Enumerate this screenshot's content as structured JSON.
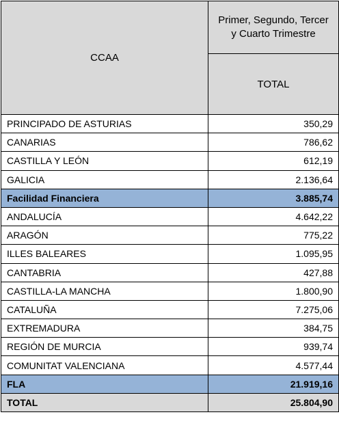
{
  "table": {
    "header": {
      "label_column": "CCAA",
      "period": "Primer, Segundo, Tercer y Cuarto Trimestre",
      "value_column": "TOTAL"
    },
    "rows": [
      [
        "PRINCIPADO DE ASTURIAS",
        "350,29"
      ],
      [
        "CANARIAS",
        "786,62"
      ],
      [
        "CASTILLA Y LEÓN",
        "612,19"
      ],
      [
        "GALICIA",
        "2.136,64"
      ],
      [
        "Facilidad Financiera",
        "3.885,74"
      ],
      [
        "ANDALUCÍA",
        "4.642,22"
      ],
      [
        "ARAGÓN",
        "775,22"
      ],
      [
        "ILLES BALEARES",
        "1.095,95"
      ],
      [
        "CANTABRIA",
        "427,88"
      ],
      [
        "CASTILLA-LA MANCHA",
        "1.800,90"
      ],
      [
        "CATALUÑA",
        "7.275,06"
      ],
      [
        "EXTREMADURA",
        "384,75"
      ],
      [
        "REGIÓN DE MURCIA",
        "939,74"
      ],
      [
        "COMUNITAT VALENCIANA",
        "4.577,44"
      ],
      [
        "FLA",
        "21.919,16"
      ],
      [
        "TOTAL",
        "25.804,90"
      ]
    ]
  }
}
